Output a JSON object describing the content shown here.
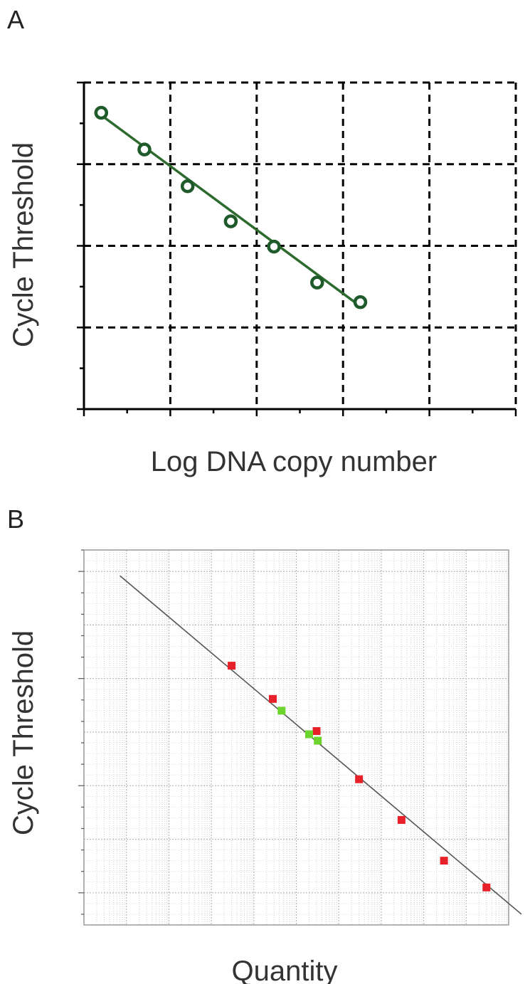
{
  "chart_data": [
    {
      "panel": "A",
      "type": "scatter",
      "xlabel": "Log DNA copy number",
      "ylabel": "Cycle Threshold",
      "xlim": [
        2,
        12
      ],
      "ylim": [
        0,
        40
      ],
      "xticks": [
        "2",
        "4",
        "6",
        "8",
        "10",
        "12"
      ],
      "yticks": [
        "0",
        "10",
        "20",
        "30",
        "40"
      ],
      "grid": "dashed",
      "marker_color": "#1e5a2a",
      "line_color": "#2d6a2d",
      "points": [
        {
          "x": 2.4,
          "y": 36.3
        },
        {
          "x": 3.4,
          "y": 31.8
        },
        {
          "x": 4.4,
          "y": 27.3
        },
        {
          "x": 5.4,
          "y": 23.0
        },
        {
          "x": 6.4,
          "y": 19.9
        },
        {
          "x": 7.4,
          "y": 15.5
        },
        {
          "x": 8.4,
          "y": 13.1
        }
      ],
      "fit_line": {
        "x": [
          2.4,
          8.4
        ],
        "y": [
          36.0,
          12.6
        ]
      }
    },
    {
      "panel": "B",
      "type": "scatter",
      "xlabel": "Quantity",
      "ylabel": "Cycle Threshold",
      "xscale": "log",
      "xlim": [
        0.001,
        10000000
      ],
      "ylim": [
        7,
        42
      ],
      "xticks": [
        "0.01",
        "1",
        "100",
        "10000",
        "100000"
      ],
      "yticks": [
        "10",
        "20",
        "30",
        "40"
      ],
      "grid": "dotted-log",
      "fit_line": {
        "x": [
          0.007,
          20000000
        ],
        "y": [
          39.6,
          8.0
        ]
      },
      "series": [
        {
          "color": "#e8202a",
          "points": [
            {
              "x": 3,
              "y": 31.2
            },
            {
              "x": 28,
              "y": 28.1
            },
            {
              "x": 300,
              "y": 25.1
            },
            {
              "x": 3000,
              "y": 20.6
            },
            {
              "x": 30000,
              "y": 16.8
            },
            {
              "x": 300000,
              "y": 13.0
            },
            {
              "x": 3000000,
              "y": 10.5
            }
          ]
        },
        {
          "color": "#6cd42c",
          "points": [
            {
              "x": 45,
              "y": 27.0
            },
            {
              "x": 200,
              "y": 24.8
            },
            {
              "x": 320,
              "y": 24.2
            }
          ]
        }
      ]
    }
  ],
  "labels": {
    "panel_a": "A",
    "panel_b": "B"
  }
}
